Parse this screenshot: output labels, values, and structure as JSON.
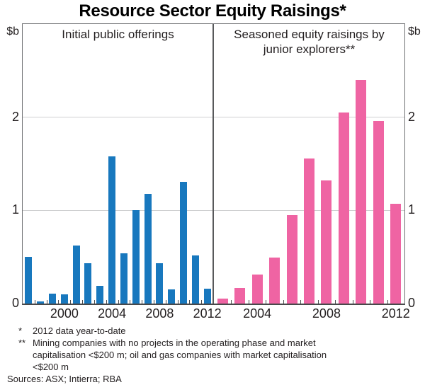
{
  "title": "Resource Sector Equity Raisings*",
  "y_axis": {
    "unit": "$b",
    "ticks": [
      "0",
      "1",
      "2"
    ],
    "max": 3
  },
  "chart_data": [
    {
      "type": "bar",
      "title": "Initial public offerings",
      "color": "#1878BE",
      "ylim": [
        0,
        3
      ],
      "ylabel": "$b",
      "grid": true,
      "categories": [
        "1997",
        "1998",
        "1999",
        "2000",
        "2001",
        "2002",
        "2003",
        "2004",
        "2005",
        "2006",
        "2007",
        "2008",
        "2009",
        "2010",
        "2011",
        "2012"
      ],
      "values": [
        0.5,
        0.02,
        0.11,
        0.1,
        0.62,
        0.43,
        0.19,
        1.58,
        0.54,
        1.0,
        1.18,
        0.43,
        0.15,
        1.31,
        0.52,
        0.16
      ],
      "xtick_labels": [
        "2000",
        "2004",
        "2008",
        "2012"
      ]
    },
    {
      "type": "bar",
      "title": "Seasoned equity raisings by junior explorers**",
      "color": "#EF64A3",
      "ylim": [
        0,
        3
      ],
      "ylabel": "$b",
      "grid": true,
      "categories": [
        "2002",
        "2003",
        "2004",
        "2005",
        "2006",
        "2007",
        "2008",
        "2009",
        "2010",
        "2011",
        "2012"
      ],
      "values": [
        0.05,
        0.17,
        0.31,
        0.49,
        0.95,
        1.56,
        1.32,
        2.05,
        2.4,
        1.96,
        1.07
      ],
      "xtick_labels": [
        "2004",
        "2008",
        "2012"
      ]
    }
  ],
  "footnotes": [
    {
      "marker": "*",
      "text": "2012 data year-to-date"
    },
    {
      "marker": "**",
      "text": "Mining companies with no projects in the operating phase and market capitalisation <$200 m; oil and gas companies with market capitalisation <$200 m"
    }
  ],
  "sources": "Sources: ASX; Intierra; RBA"
}
